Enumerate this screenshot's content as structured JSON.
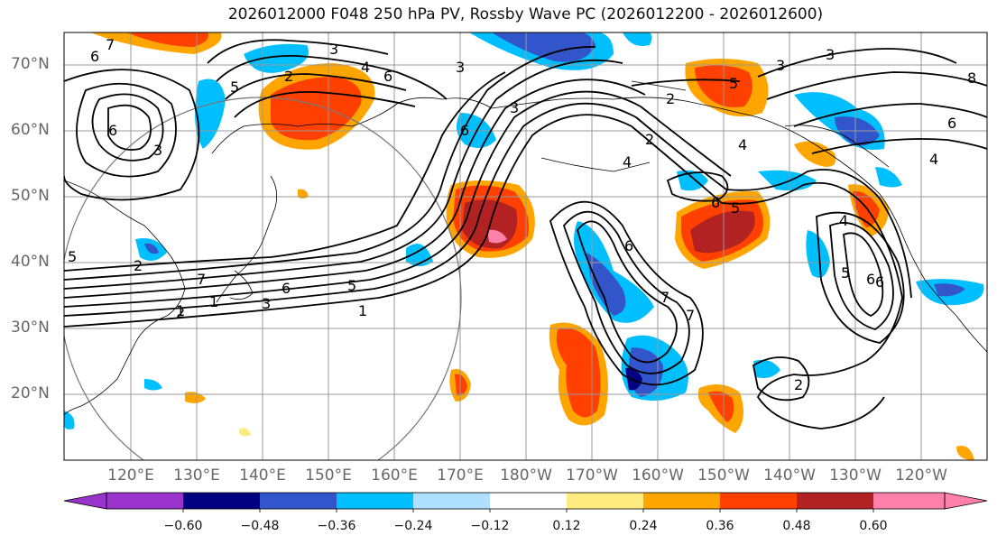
{
  "title": "2026012000 F048 250 hPa PV, Rossby Wave PC (2026012200 - 2026012600)",
  "map": {
    "lat_labels": [
      "70°N",
      "60°N",
      "50°N",
      "40°N",
      "30°N",
      "20°N"
    ],
    "lon_labels": [
      "120°E",
      "130°E",
      "140°E",
      "150°E",
      "160°E",
      "170°E",
      "180°W",
      "170°W",
      "160°W",
      "150°W",
      "140°W",
      "130°W",
      "120°W"
    ],
    "contour_labels": [
      "6",
      "3",
      "7",
      "6",
      "2",
      "4",
      "6",
      "3",
      "5",
      "6",
      "3",
      "2",
      "3",
      "5",
      "2",
      "4",
      "8",
      "6",
      "6",
      "7",
      "1",
      "5",
      "2",
      "5",
      "3",
      "6",
      "1",
      "3",
      "4",
      "6",
      "7",
      "6",
      "5",
      "7",
      "2",
      "5",
      "4",
      "6",
      "3",
      "4",
      "2",
      "1"
    ]
  },
  "colorbar": {
    "ticks": [
      "−0.60",
      "−0.48",
      "−0.36",
      "−0.24",
      "−0.12",
      "0.12",
      "0.24",
      "0.36",
      "0.48",
      "0.60"
    ],
    "colors": [
      "#9933cc",
      "#000080",
      "#3355cc",
      "#00bfff",
      "#b0e0ff",
      "#ffffff",
      "#ffeb80",
      "#ffa500",
      "#ff4000",
      "#b22222",
      "#ff80aa"
    ]
  }
}
